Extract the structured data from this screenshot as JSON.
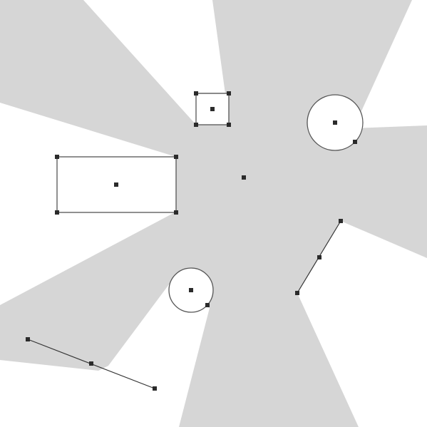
{
  "canvas": {
    "background_color": "#ffffff",
    "visibility_region_color": "#d6d6d6",
    "outline_color": "#555555",
    "handle_color": "#2b2b2b"
  },
  "viewpoint": {
    "label": "light-source"
  },
  "obstacles": [
    {
      "kind": "rectangle",
      "label": "small-square",
      "handles": 5
    },
    {
      "kind": "rectangle",
      "label": "wide-rectangle",
      "handles": 5
    },
    {
      "kind": "circle",
      "label": "upper-right-circle",
      "handles": 2
    },
    {
      "kind": "circle",
      "label": "lower-circle",
      "handles": 2
    },
    {
      "kind": "polyline",
      "label": "right-segment",
      "handles": 3
    },
    {
      "kind": "polyline",
      "label": "lower-left-segment",
      "handles": 3
    }
  ]
}
